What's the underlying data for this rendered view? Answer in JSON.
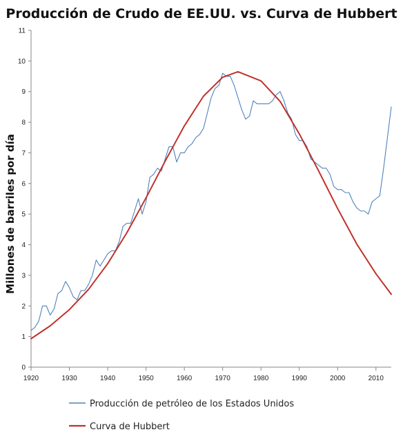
{
  "chart_data": {
    "type": "line",
    "title": "Producción de Crudo de EE.UU. vs. Curva de Hubbert",
    "xlabel": "",
    "ylabel": "Millones de barriles por día",
    "xlim": [
      1920,
      2014
    ],
    "ylim": [
      0,
      11
    ],
    "x_ticks": [
      "1920",
      "1930",
      "1940",
      "1950",
      "1960",
      "1970",
      "1980",
      "1990",
      "2000",
      "2010"
    ],
    "y_ticks": [
      "0",
      "1",
      "2",
      "3",
      "4",
      "5",
      "6",
      "7",
      "8",
      "9",
      "10",
      "11"
    ],
    "grid": "off",
    "legend_position": "bottom",
    "series": [
      {
        "name": "Producción de petróleo de los Estados Unidos",
        "color": "#4f81bd",
        "x": [
          1920,
          1921,
          1922,
          1923,
          1924,
          1925,
          1926,
          1927,
          1928,
          1929,
          1930,
          1931,
          1932,
          1933,
          1934,
          1935,
          1936,
          1937,
          1938,
          1939,
          1940,
          1941,
          1942,
          1943,
          1944,
          1945,
          1946,
          1947,
          1948,
          1949,
          1950,
          1951,
          1952,
          1953,
          1954,
          1955,
          1956,
          1957,
          1958,
          1959,
          1960,
          1961,
          1962,
          1963,
          1964,
          1965,
          1966,
          1967,
          1968,
          1969,
          1970,
          1971,
          1972,
          1973,
          1974,
          1975,
          1976,
          1977,
          1978,
          1979,
          1980,
          1981,
          1982,
          1983,
          1984,
          1985,
          1986,
          1987,
          1988,
          1989,
          1990,
          1991,
          1992,
          1993,
          1994,
          1995,
          1996,
          1997,
          1998,
          1999,
          2000,
          2001,
          2002,
          2003,
          2004,
          2005,
          2006,
          2007,
          2008,
          2009,
          2010,
          2011,
          2012,
          2013,
          2014
        ],
        "y": [
          1.2,
          1.3,
          1.5,
          2.0,
          2.0,
          1.7,
          1.9,
          2.4,
          2.5,
          2.8,
          2.6,
          2.3,
          2.2,
          2.5,
          2.5,
          2.7,
          3.0,
          3.5,
          3.3,
          3.5,
          3.7,
          3.8,
          3.8,
          4.1,
          4.6,
          4.7,
          4.7,
          5.1,
          5.5,
          5.0,
          5.4,
          6.2,
          6.3,
          6.5,
          6.4,
          6.8,
          7.2,
          7.2,
          6.7,
          7.0,
          7.0,
          7.2,
          7.3,
          7.5,
          7.6,
          7.8,
          8.3,
          8.8,
          9.1,
          9.2,
          9.6,
          9.5,
          9.5,
          9.2,
          8.8,
          8.4,
          8.1,
          8.2,
          8.7,
          8.6,
          8.6,
          8.6,
          8.6,
          8.7,
          8.9,
          9.0,
          8.7,
          8.3,
          8.1,
          7.6,
          7.4,
          7.4,
          7.2,
          6.8,
          6.7,
          6.6,
          6.5,
          6.5,
          6.3,
          5.9,
          5.8,
          5.8,
          5.7,
          5.7,
          5.4,
          5.2,
          5.1,
          5.1,
          5.0,
          5.4,
          5.5,
          5.6,
          6.5,
          7.5,
          8.5
        ]
      },
      {
        "name": "Curva de Hubbert",
        "color": "#c0302a",
        "x": [
          1920,
          1925,
          1930,
          1935,
          1940,
          1945,
          1950,
          1955,
          1960,
          1965,
          1970,
          1974,
          1980,
          1985,
          1990,
          1995,
          2000,
          2005,
          2010,
          2014
        ],
        "y": [
          0.93,
          1.35,
          1.88,
          2.54,
          3.38,
          4.39,
          5.53,
          6.73,
          7.88,
          8.85,
          9.47,
          9.65,
          9.35,
          8.68,
          7.62,
          6.42,
          5.18,
          4.02,
          3.05,
          2.38
        ]
      }
    ]
  }
}
